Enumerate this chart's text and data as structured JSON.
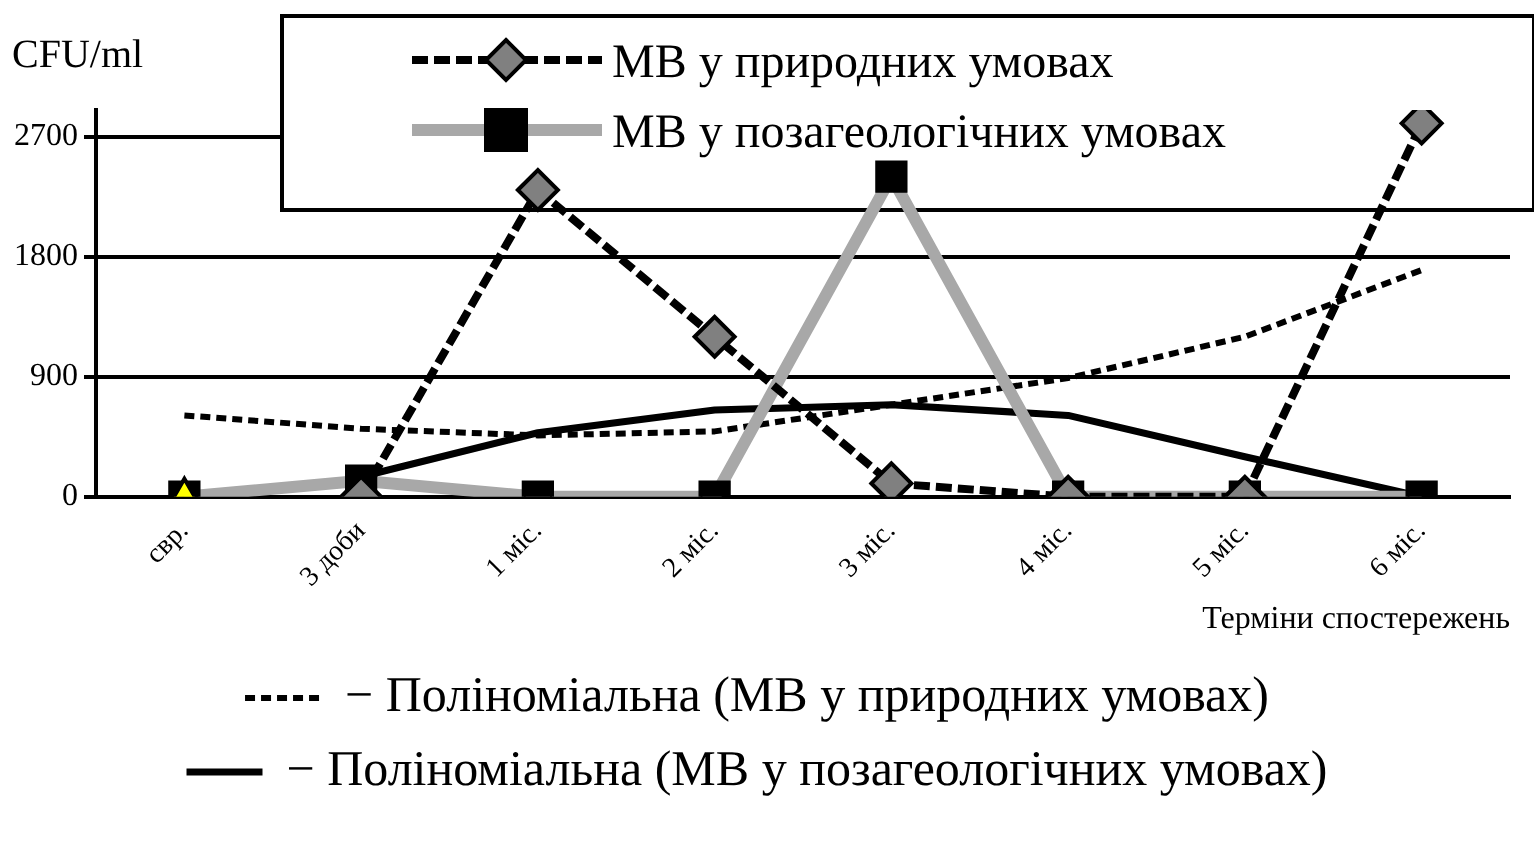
{
  "chart_data": {
    "type": "line",
    "ylabel": "CFU/ml",
    "xlabel": "Терміни спостережень",
    "categories": [
      "свр.",
      "3 доби",
      "1 міс.",
      "2 міс.",
      "3 міс.",
      "4 міс.",
      "5 міс.",
      "6 міс."
    ],
    "series": [
      {
        "name": "МВ у природних умовах",
        "type": "line",
        "color": "#000000",
        "marker": "diamond",
        "line_style": "dashed",
        "values": [
          null,
          0,
          2300,
          1200,
          100,
          0,
          0,
          2800
        ]
      },
      {
        "name": "МВ у позагеологічних умовах",
        "type": "line",
        "color": "#000000",
        "marker": "square",
        "line_style": "solid",
        "values": [
          0,
          120,
          0,
          0,
          2400,
          0,
          0,
          0
        ]
      },
      {
        "type": "scatter",
        "color": "#ffff00",
        "marker": "triangle",
        "x": [
          "свр."
        ],
        "values": [
          0
        ]
      },
      {
        "type": "line",
        "color": "#000000",
        "marker": "none",
        "line_style": "dashed",
        "values": [
          610,
          510,
          460,
          490,
          690,
          890,
          1200,
          1700
        ]
      },
      {
        "type": "line",
        "color": "#000000",
        "marker": "none",
        "line_style": "solid",
        "values": [
          null,
          150,
          480,
          650,
          690,
          610,
          300,
          0
        ]
      }
    ],
    "annotations": [
      "− Поліноміальна (МВ у природних умовах)",
      "− Поліноміальна (МВ у позагеологічних умовах)"
    ],
    "ylim": [
      0,
      2900
    ],
    "yticks": [
      0,
      900,
      1800,
      2700
    ],
    "grid": "y",
    "legend": "top right"
  }
}
